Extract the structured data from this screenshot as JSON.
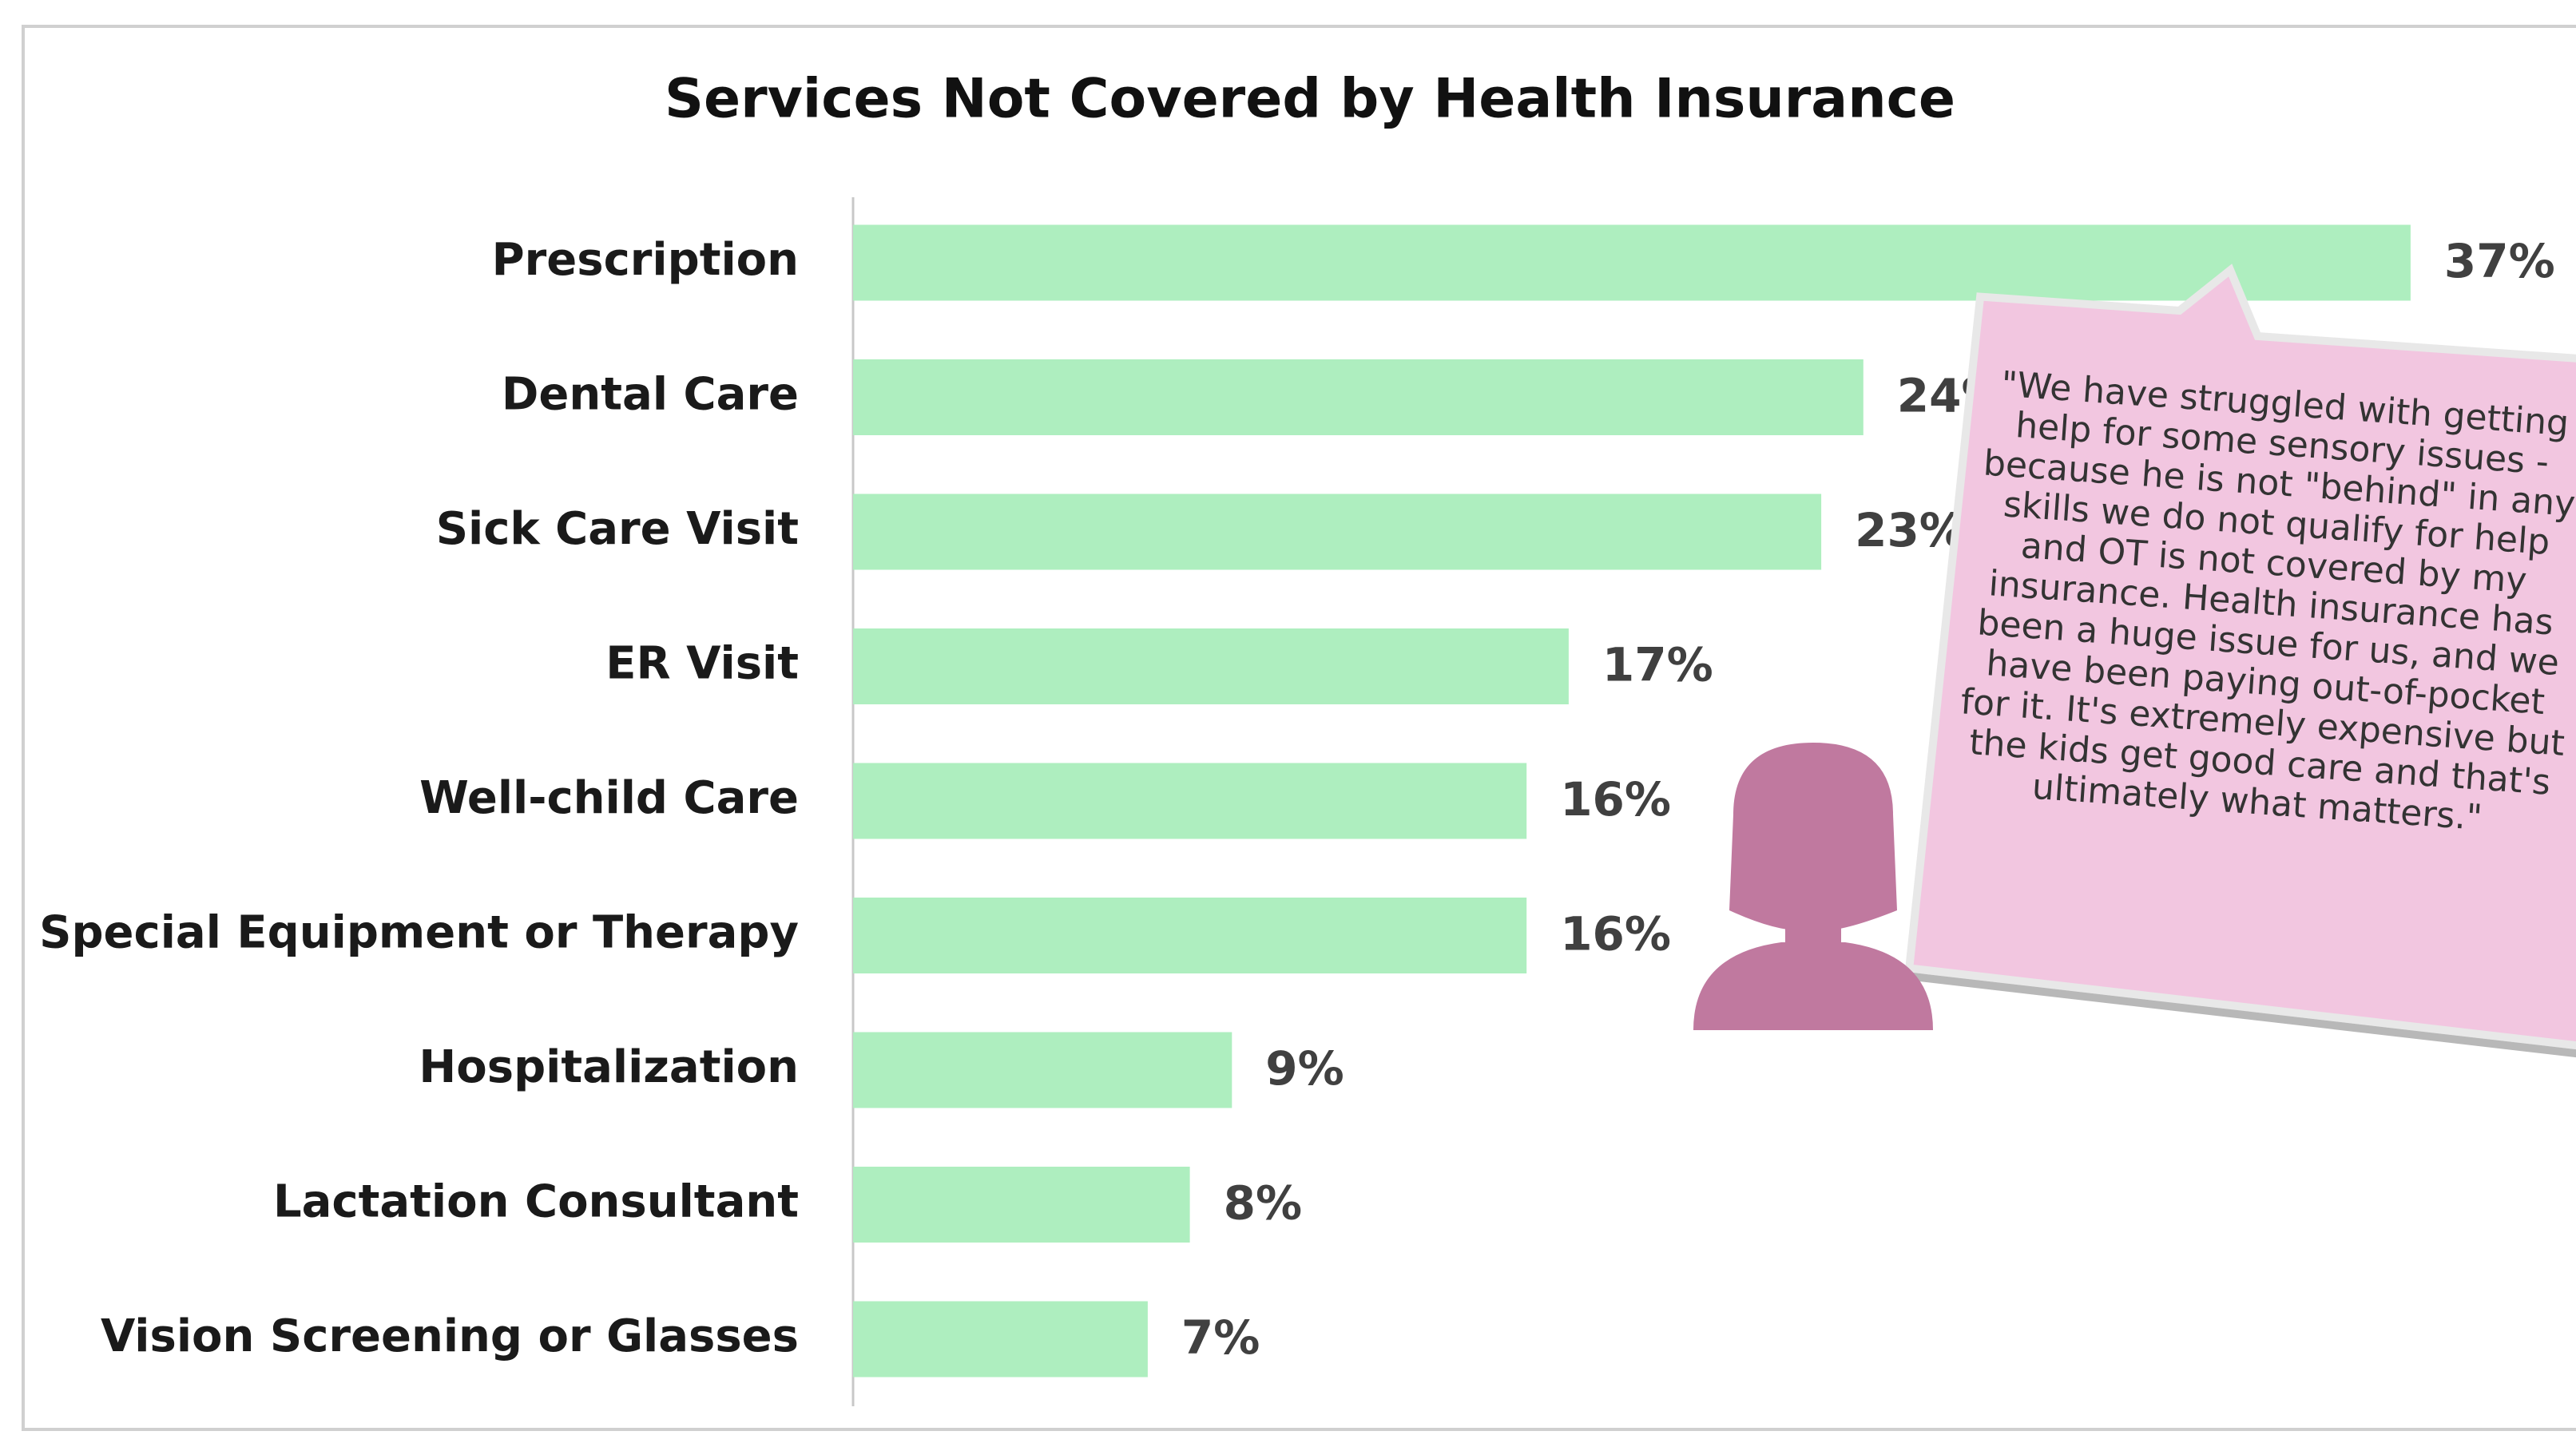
{
  "chart_data": {
    "type": "barh",
    "title": "Services Not Covered by Health Insurance",
    "categories": [
      "Prescription",
      "Dental Care",
      "Sick Care Visit",
      "ER Visit",
      "Well-child Care",
      "Special Equipment or Therapy",
      "Hospitalization",
      "Lactation Consultant",
      "Vision Screening or Glasses"
    ],
    "values": [
      37,
      24,
      23,
      17,
      16,
      16,
      9,
      8,
      7
    ],
    "value_labels": [
      "37%",
      "24%",
      "23%",
      "17%",
      "16%",
      "16%",
      "9%",
      "8%",
      "7%"
    ],
    "color": "#aeeebf",
    "xlim": [
      0,
      40
    ],
    "annotation": [
      "\"We have struggled with getting",
      "help for some sensory issues -",
      "because he is not \"behind\" in any",
      "skills we do not qualify for help",
      "and OT is not covered by my",
      "insurance. Health insurance has",
      "been a huge issue for us, and we",
      "have been paying out-of-pocket",
      "for it.  It's extremely expensive but",
      "the kids get good care and that's",
      "ultimately what matters.\""
    ]
  }
}
